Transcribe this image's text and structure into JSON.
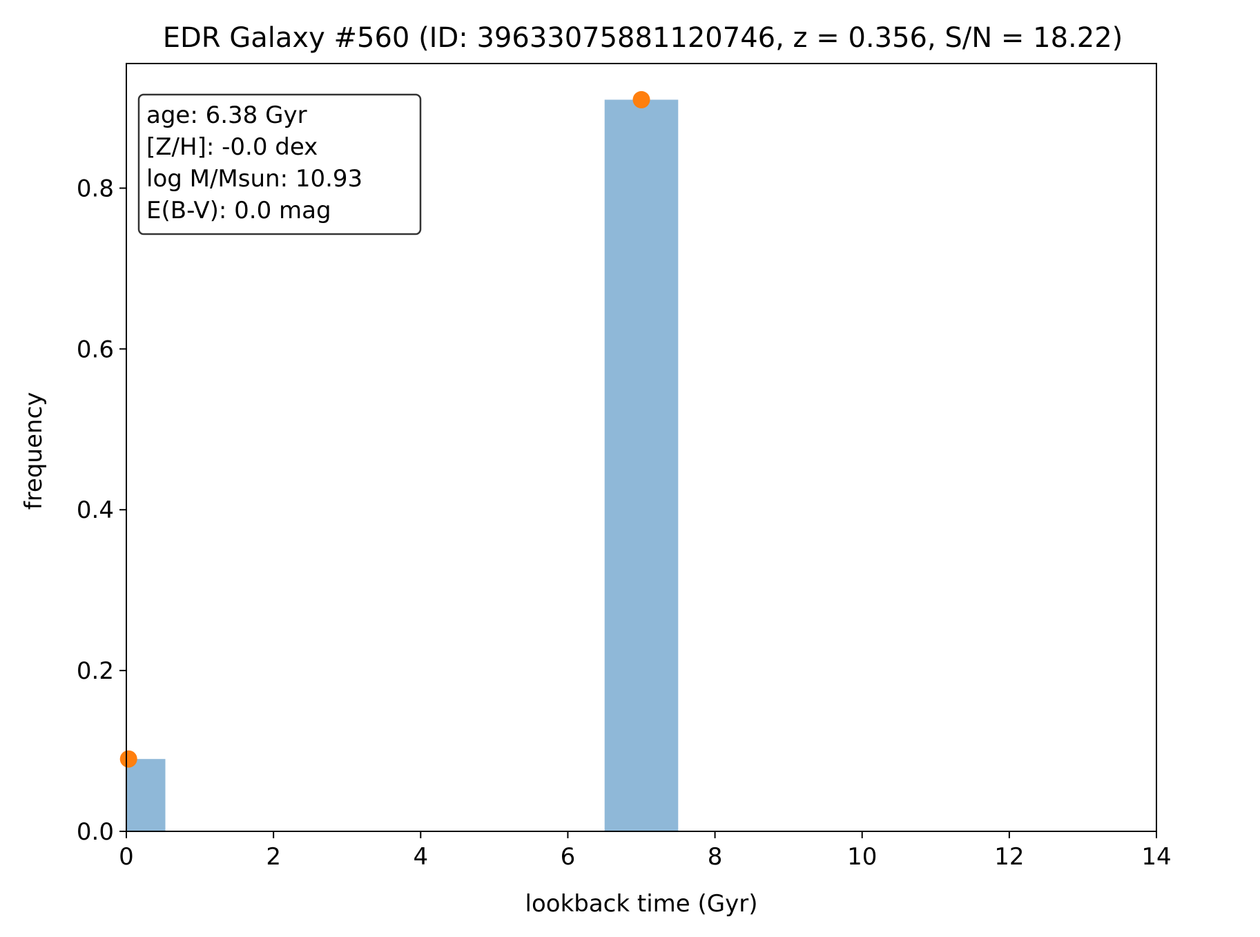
{
  "chart_data": {
    "type": "bar",
    "title": "EDR Galaxy #560 (ID: 39633075881120746, z = 0.356, S/N = 18.22)",
    "xlabel": "lookback time (Gyr)",
    "ylabel": "frequency",
    "xlim": [
      0,
      14
    ],
    "ylim": [
      0,
      0.955
    ],
    "xticks": [
      0,
      2,
      4,
      6,
      8,
      10,
      12,
      14
    ],
    "xtick_labels": [
      "0",
      "2",
      "4",
      "6",
      "8",
      "10",
      "12",
      "14"
    ],
    "yticks": [
      0.0,
      0.2,
      0.4,
      0.6,
      0.8
    ],
    "ytick_labels": [
      "0.0",
      "0.2",
      "0.4",
      "0.6",
      "0.8"
    ],
    "grid": false,
    "bars": [
      {
        "x_start": 0.0,
        "x_end": 0.53,
        "value": 0.09
      },
      {
        "x_start": 6.5,
        "x_end": 7.5,
        "value": 0.91
      }
    ],
    "points": [
      {
        "x": 0.03,
        "y": 0.09
      },
      {
        "x": 7.0,
        "y": 0.91
      }
    ],
    "bar_color": "#8fb8d8",
    "point_color": "#ff7f0e",
    "info_box": {
      "position": "top-left",
      "lines": [
        "age: 6.38 Gyr",
        "[Z/H]: -0.0 dex",
        "log M/Msun: 10.93",
        "E(B-V): 0.0 mag"
      ]
    }
  }
}
